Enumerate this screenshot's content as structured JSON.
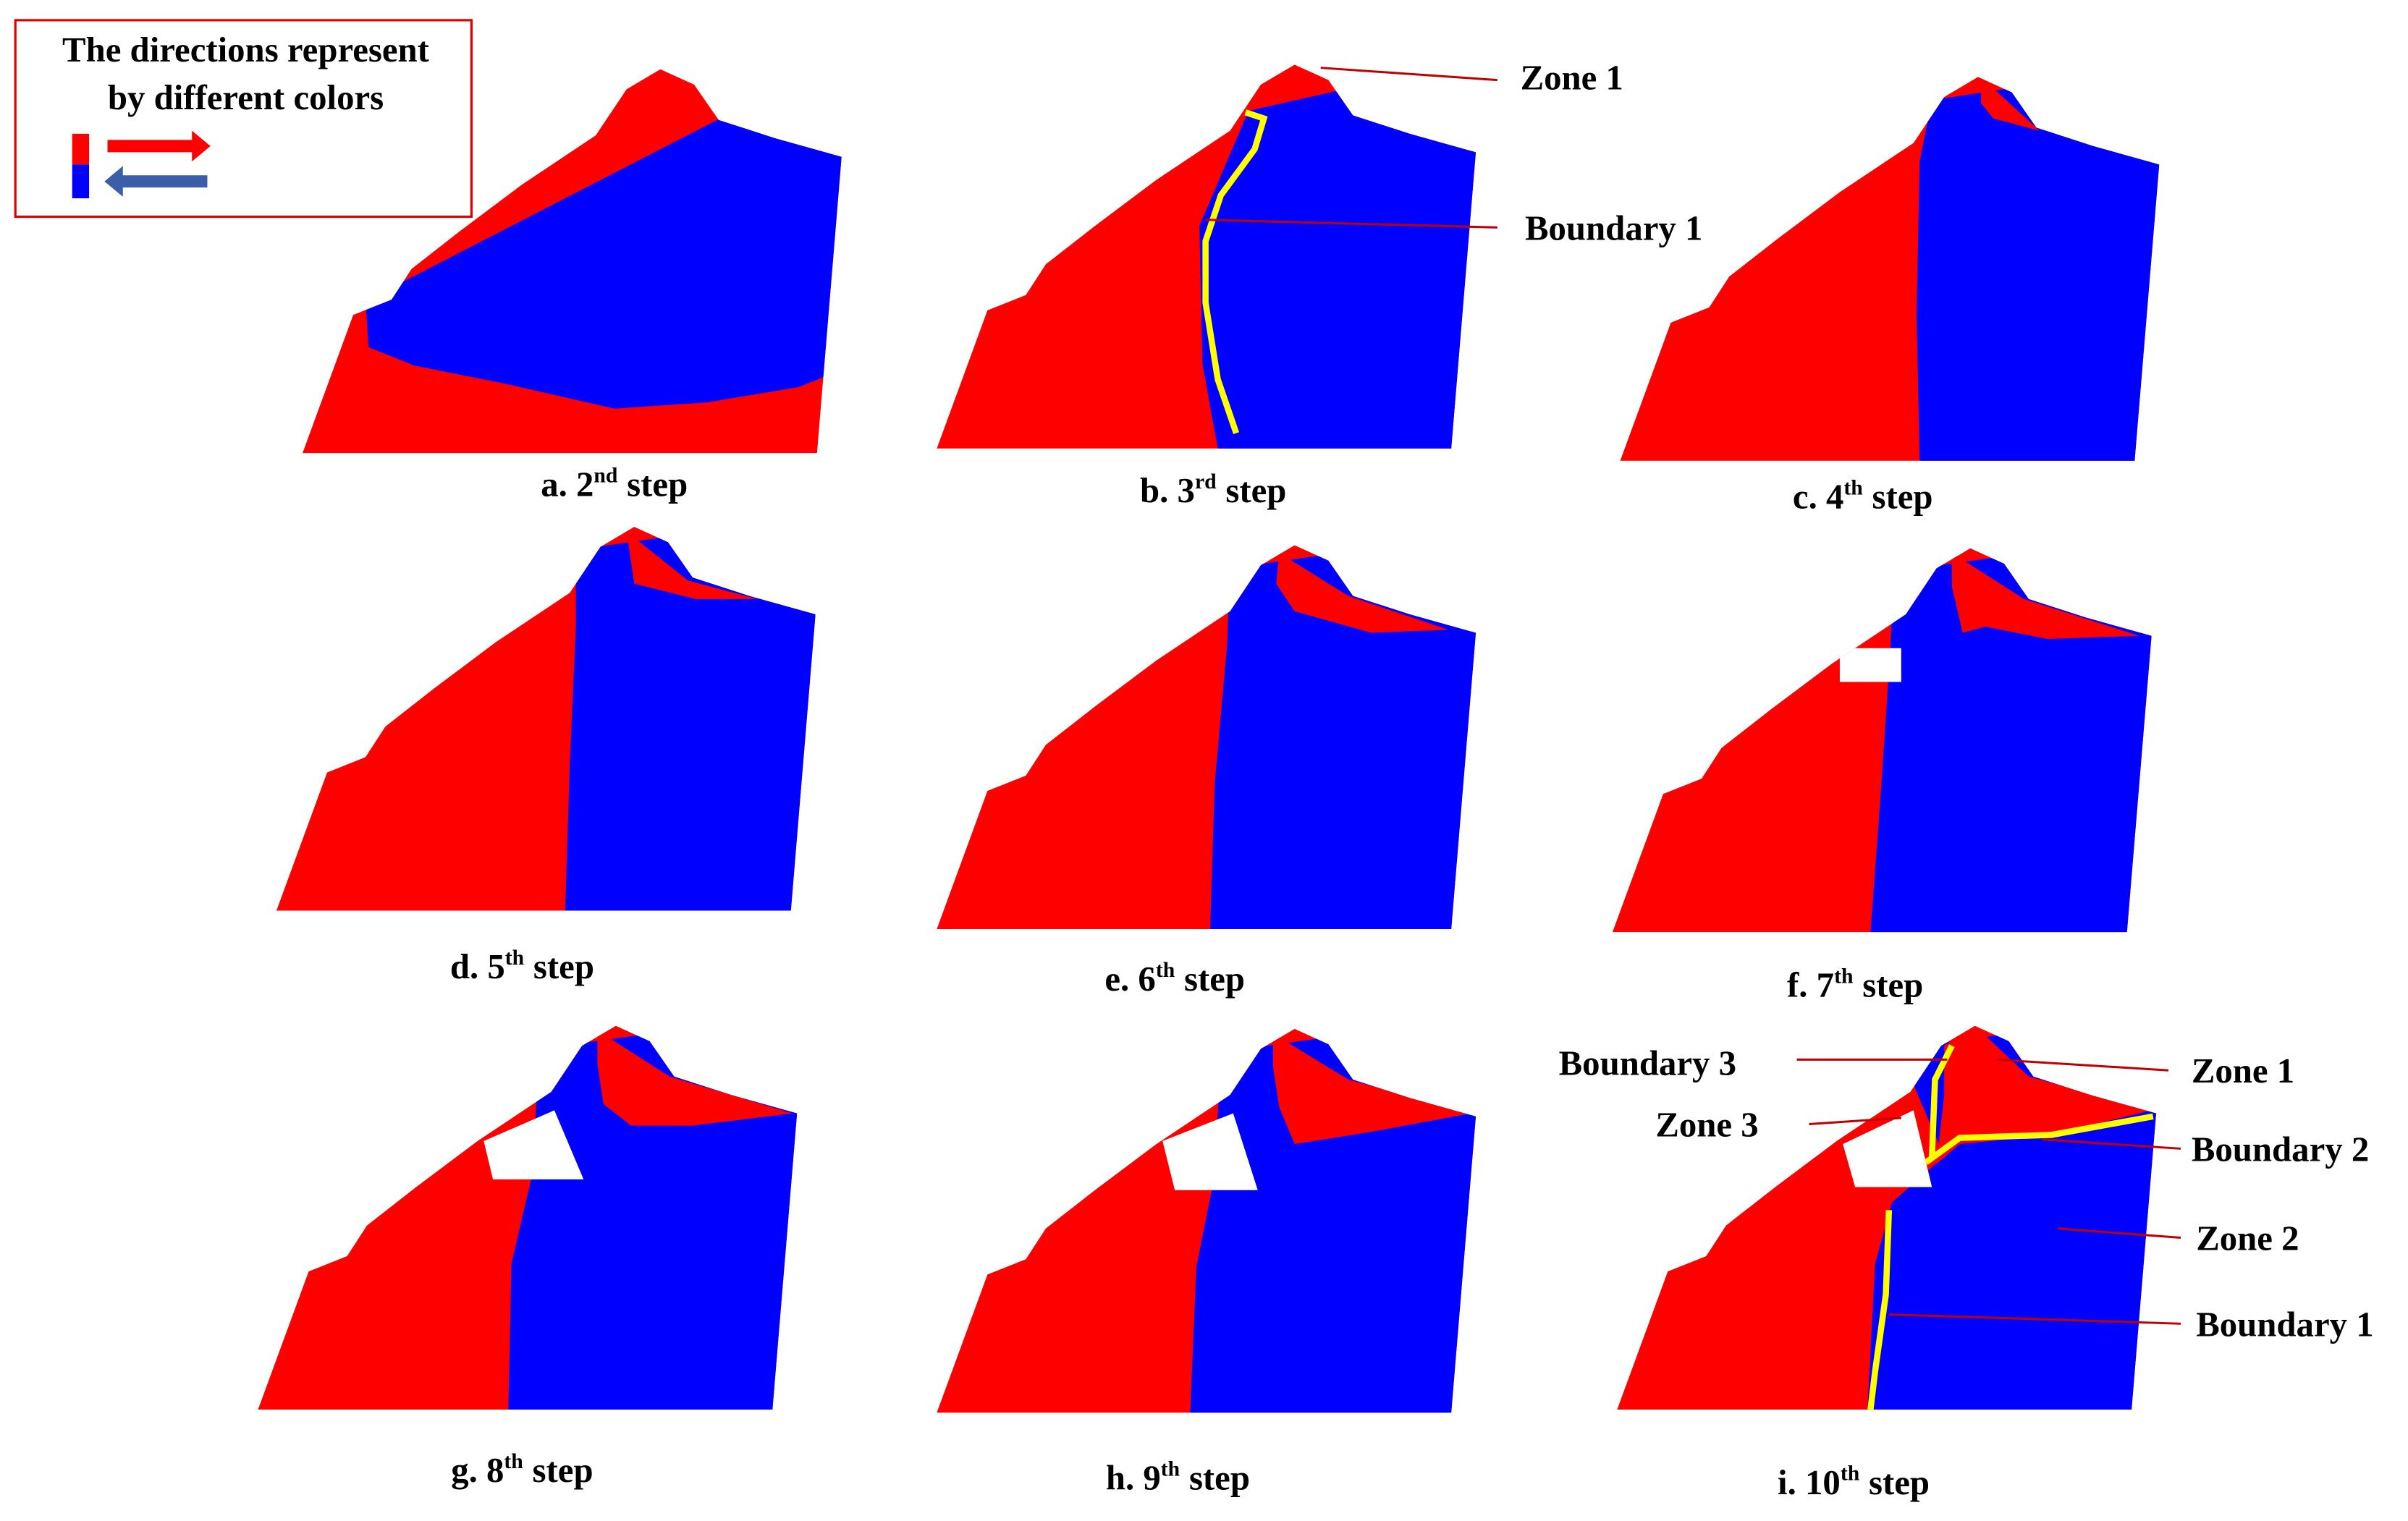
{
  "legend": {
    "lines": [
      "The directions represent",
      "by different colors"
    ]
  },
  "panels": [
    {
      "prefix": "a. 2",
      "sup": "nd",
      "suffix": "step"
    },
    {
      "prefix": "b. 3",
      "sup": "rd",
      "suffix": "step"
    },
    {
      "prefix": "c. 4",
      "sup": "th",
      "suffix": "step"
    },
    {
      "prefix": "d. 5",
      "sup": "th",
      "suffix": "step"
    },
    {
      "prefix": "e. 6",
      "sup": "th",
      "suffix": "step"
    },
    {
      "prefix": "f. 7",
      "sup": "th",
      "suffix": "step"
    },
    {
      "prefix": "g. 8",
      "sup": "th",
      "suffix": "step"
    },
    {
      "prefix": "h. 9",
      "sup": "th",
      "suffix": "step"
    },
    {
      "prefix": "i. 10",
      "sup": "th",
      "suffix": "step"
    }
  ],
  "annotations": [
    "Zone 1",
    "Boundary 1",
    "Boundary 3",
    "Zone 1",
    "Zone 3",
    "Boundary 2",
    "Zone 2",
    "Boundary 1"
  ]
}
